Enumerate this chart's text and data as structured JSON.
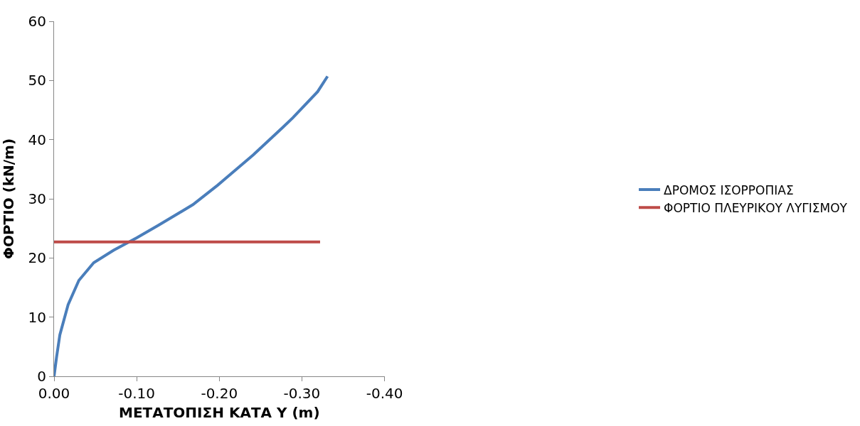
{
  "chart_data": {
    "type": "line",
    "xlabel": "ΜΕΤΑΤΟΠΙΣΗ ΚΑΤΑ Υ (m)",
    "ylabel": "ΦΟΡΤΙΟ (kN/m)",
    "xlim": [
      0,
      -0.4
    ],
    "xticks": [
      {
        "value": 0,
        "label": "0.00"
      },
      {
        "value": -0.1,
        "label": "-0.10"
      },
      {
        "value": -0.2,
        "label": "-0.20"
      },
      {
        "value": -0.3,
        "label": "-0.30"
      },
      {
        "value": -0.4,
        "label": "-0.40"
      }
    ],
    "ylim": [
      0,
      60
    ],
    "yticks": [
      0,
      10,
      20,
      30,
      40,
      50,
      60
    ],
    "legend": "right",
    "marker": "none",
    "line_style": "solid",
    "series": [
      {
        "name": "ΔΡΟΜΟΣ ΙΣΟΡΡΟΠΙΑΣ",
        "color": "#4a7ebb",
        "x": [
          0,
          -0.003,
          -0.007,
          -0.017,
          -0.03,
          -0.048,
          -0.072,
          -0.1,
          -0.126,
          -0.168,
          -0.198,
          -0.241,
          -0.277,
          -0.289,
          -0.319,
          -0.331
        ],
        "values": [
          0,
          3.2,
          7,
          12.1,
          16.2,
          19.2,
          21.3,
          23.4,
          25.5,
          29,
          32.3,
          37.4,
          42.1,
          43.7,
          48.1,
          50.7
        ]
      },
      {
        "name": "ΦΟΡΤΙΟ ΠΛΕΥΡΙΚΟΥ ΛΥΓΙΣΜΟΥ",
        "color": "#be4b48",
        "x": [
          0,
          -0.322
        ],
        "values": [
          22.7,
          22.7
        ]
      }
    ]
  }
}
